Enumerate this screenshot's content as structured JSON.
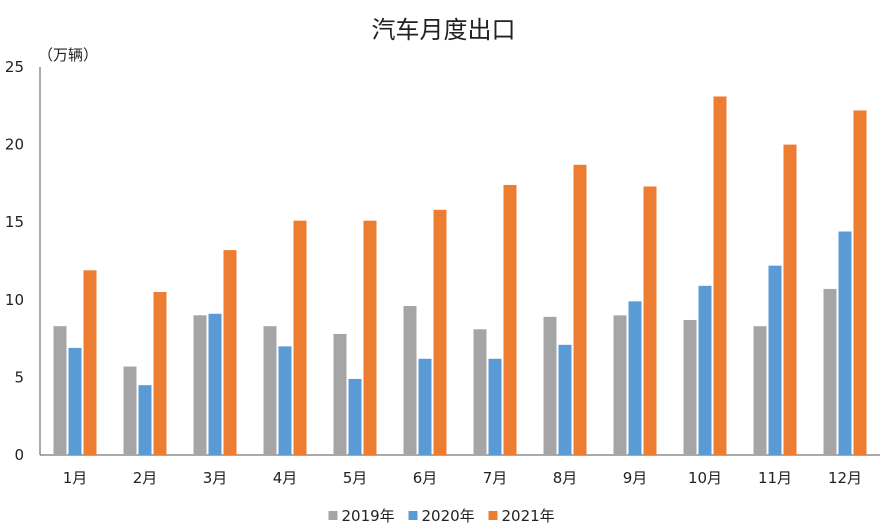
{
  "chart_data": {
    "type": "bar",
    "title": "汽车月度出口",
    "ylabel": "（万辆）",
    "xlabel": "",
    "categories": [
      "1月",
      "2月",
      "3月",
      "4月",
      "5月",
      "6月",
      "7月",
      "8月",
      "9月",
      "10月",
      "11月",
      "12月"
    ],
    "series": [
      {
        "name": "2019年",
        "color": "#a5a5a5",
        "values": [
          8.3,
          5.7,
          9.0,
          8.3,
          7.8,
          9.6,
          8.1,
          8.9,
          9.0,
          8.7,
          8.3,
          10.7
        ]
      },
      {
        "name": "2020年",
        "color": "#5b9bd5",
        "values": [
          6.9,
          4.5,
          9.1,
          7.0,
          4.9,
          6.2,
          6.2,
          7.1,
          9.9,
          10.9,
          12.2,
          14.4
        ]
      },
      {
        "name": "2021年",
        "color": "#ed7d31",
        "values": [
          11.9,
          10.5,
          13.2,
          15.1,
          15.1,
          15.8,
          17.4,
          18.7,
          17.3,
          23.1,
          20.0,
          22.2
        ]
      }
    ],
    "ylim": [
      0,
      25
    ],
    "yticks": [
      0,
      5,
      10,
      15,
      20,
      25
    ],
    "grid": false,
    "legend": "bottom-center"
  }
}
